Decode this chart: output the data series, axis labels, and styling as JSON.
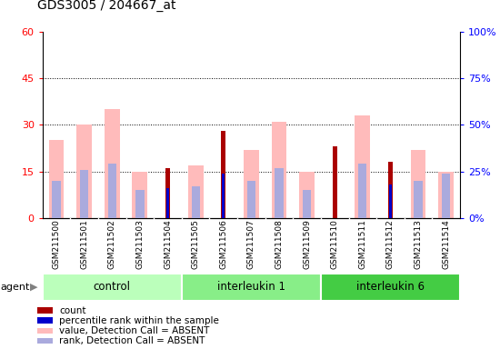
{
  "title": "GDS3005 / 204667_at",
  "samples": [
    "GSM211500",
    "GSM211501",
    "GSM211502",
    "GSM211503",
    "GSM211504",
    "GSM211505",
    "GSM211506",
    "GSM211507",
    "GSM211508",
    "GSM211509",
    "GSM211510",
    "GSM211511",
    "GSM211512",
    "GSM211513",
    "GSM211514"
  ],
  "groups": [
    {
      "label": "control",
      "color": "#bbffbb",
      "samples": [
        0,
        1,
        2,
        3,
        4
      ]
    },
    {
      "label": "interleukin 1",
      "color": "#88ee88",
      "samples": [
        5,
        6,
        7,
        8,
        9
      ]
    },
    {
      "label": "interleukin 6",
      "color": "#44cc44",
      "samples": [
        10,
        11,
        12,
        13,
        14
      ]
    }
  ],
  "value_absent": [
    25,
    30,
    35,
    15,
    null,
    17,
    null,
    22,
    31,
    15,
    null,
    33,
    null,
    22,
    15
  ],
  "rank_absent": [
    20,
    26,
    29,
    15,
    null,
    17,
    null,
    20,
    27,
    15,
    null,
    29,
    null,
    20,
    24
  ],
  "count": [
    null,
    null,
    null,
    null,
    16,
    null,
    28,
    null,
    null,
    null,
    23,
    null,
    18,
    null,
    null
  ],
  "percentile": [
    null,
    null,
    null,
    null,
    16,
    null,
    24,
    null,
    null,
    null,
    null,
    null,
    18,
    null,
    null
  ],
  "ylim_left": [
    0,
    60
  ],
  "ylim_right": [
    0,
    100
  ],
  "yticks_left": [
    0,
    15,
    30,
    45,
    60
  ],
  "yticks_right": [
    0,
    25,
    50,
    75,
    100
  ],
  "color_count": "#aa0000",
  "color_percentile": "#0000cc",
  "color_value_absent": "#ffbbbb",
  "color_rank_absent": "#aaaadd",
  "agent_label": "agent",
  "legend_items": [
    {
      "color": "#aa0000",
      "marker": "s",
      "label": "count"
    },
    {
      "color": "#0000cc",
      "marker": "s",
      "label": "percentile rank within the sample"
    },
    {
      "color": "#ffbbbb",
      "marker": "s",
      "label": "value, Detection Call = ABSENT"
    },
    {
      "color": "#aaaadd",
      "marker": "s",
      "label": "rank, Detection Call = ABSENT"
    }
  ],
  "bar_width": 0.55,
  "xtick_bg_color": "#cccccc"
}
